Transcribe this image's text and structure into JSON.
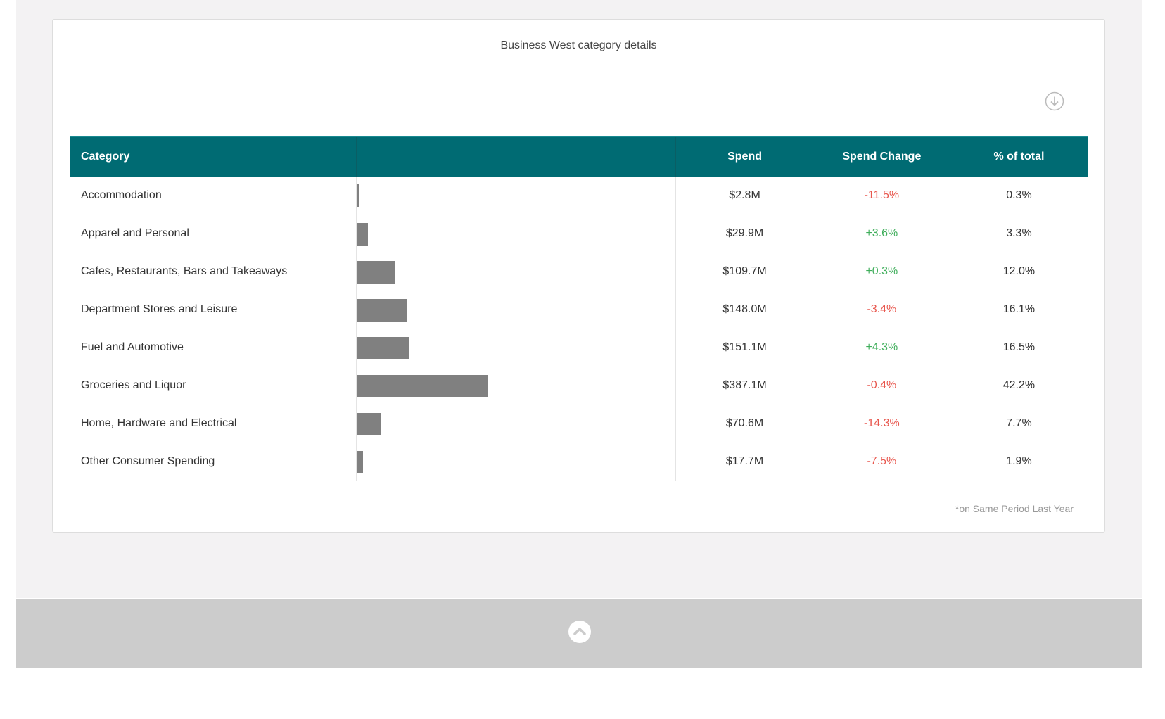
{
  "card": {
    "title": "Business West category details",
    "footnote": "*on Same Period Last Year"
  },
  "table": {
    "headers": {
      "category": "Category",
      "bar": "",
      "spend": "Spend",
      "change": "Spend Change",
      "pct": "% of total"
    },
    "rows": [
      {
        "category": "Accommodation",
        "spend": "$2.8M",
        "change": "-11.5%",
        "pct": "0.3%",
        "share": 0.3,
        "trend": "negative"
      },
      {
        "category": "Apparel and Personal",
        "spend": "$29.9M",
        "change": "+3.6%",
        "pct": "3.3%",
        "share": 3.3,
        "trend": "positive"
      },
      {
        "category": "Cafes, Restaurants, Bars and Takeaways",
        "spend": "$109.7M",
        "change": "+0.3%",
        "pct": "12.0%",
        "share": 12.0,
        "trend": "positive"
      },
      {
        "category": "Department Stores and Leisure",
        "spend": "$148.0M",
        "change": "-3.4%",
        "pct": "16.1%",
        "share": 16.1,
        "trend": "negative"
      },
      {
        "category": "Fuel and Automotive",
        "spend": "$151.1M",
        "change": "+4.3%",
        "pct": "16.5%",
        "share": 16.5,
        "trend": "positive"
      },
      {
        "category": "Groceries and Liquor",
        "spend": "$387.1M",
        "change": "-0.4%",
        "pct": "42.2%",
        "share": 42.2,
        "trend": "negative"
      },
      {
        "category": "Home, Hardware and Electrical",
        "spend": "$70.6M",
        "change": "-14.3%",
        "pct": "7.7%",
        "share": 7.7,
        "trend": "negative"
      },
      {
        "category": "Other Consumer Spending",
        "spend": "$17.7M",
        "change": "-7.5%",
        "pct": "1.9%",
        "share": 1.9,
        "trend": "negative"
      }
    ]
  },
  "colors": {
    "header_bg": "#006b73",
    "bar": "#808080",
    "negative": "#e8574e",
    "positive": "#3fae5b"
  },
  "icons": {
    "download": "download-circle-icon",
    "scroll_top": "chevron-up-icon"
  }
}
